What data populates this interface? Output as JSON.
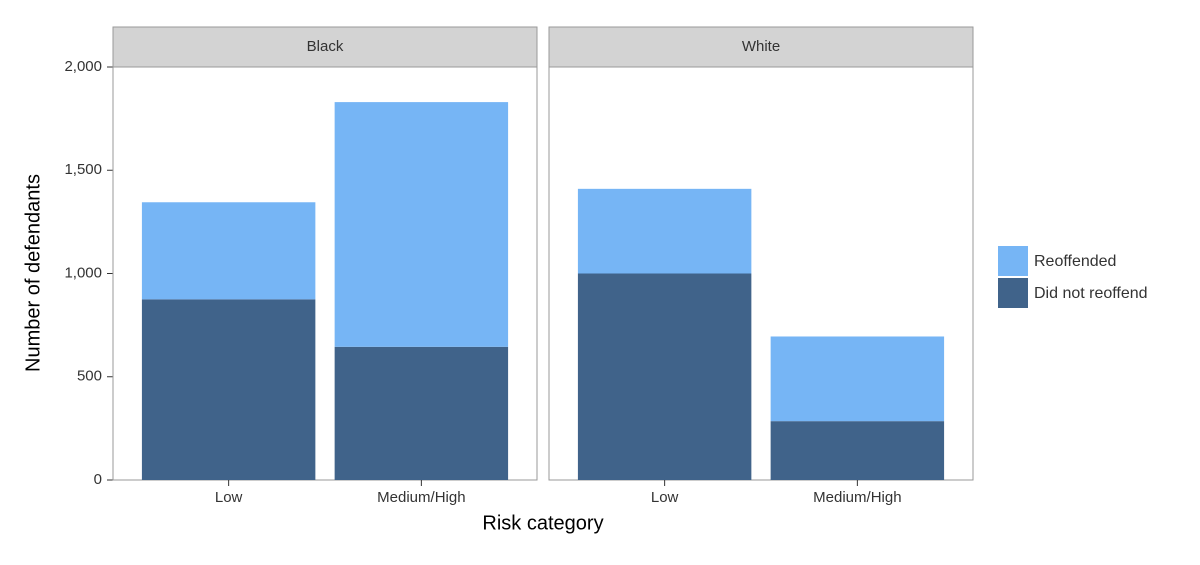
{
  "chart_data": {
    "type": "bar",
    "stacked": true,
    "y_label": "Number of defendants",
    "x_label": "Risk category",
    "facets": [
      "Black",
      "White"
    ],
    "categories": [
      "Low",
      "Medium/High"
    ],
    "series": [
      {
        "name": "Did not reoffend",
        "color": "#40638a",
        "values": [
          [
            875,
            645
          ],
          [
            1000,
            285
          ]
        ]
      },
      {
        "name": "Reoffended",
        "color": "#76b5f5",
        "values": [
          [
            470,
            1185
          ],
          [
            410,
            410
          ]
        ]
      }
    ],
    "ylim": [
      0,
      2000
    ],
    "yticks": [
      0,
      500,
      {
        "value": 1000,
        "label": "1,000"
      },
      {
        "value": 1500,
        "label": "1,500"
      },
      {
        "value": 2000,
        "label": "2,000"
      }
    ],
    "grid": false,
    "legend": "right"
  }
}
